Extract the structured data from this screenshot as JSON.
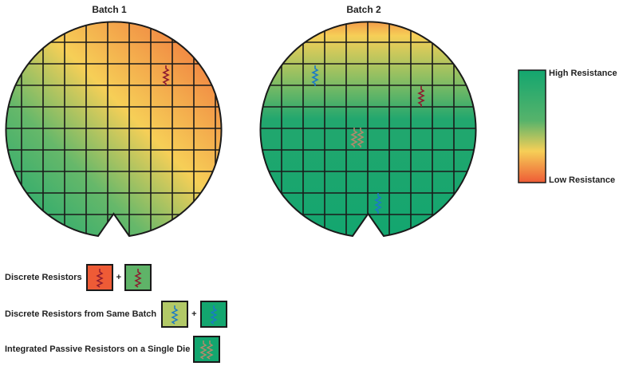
{
  "wafers": [
    {
      "title": "Batch 1"
    },
    {
      "title": "Batch 2"
    }
  ],
  "scale": {
    "high_label": "High Resistance",
    "low_label": "Low Resistance",
    "colors": [
      "#13a66f",
      "#57b36b",
      "#f6cf57",
      "#ee5b36"
    ]
  },
  "legend": {
    "rows": [
      {
        "label": "Discrete Resistors",
        "plus": "+",
        "swatches": [
          "red-wafer-swatch",
          "green-wafer-swatch"
        ]
      },
      {
        "label": "Discrete Resistors from Same Batch",
        "plus": "+",
        "swatches": [
          "yellow-green-wafer-swatch",
          "green-wafer-swatch"
        ]
      },
      {
        "label": "Integrated Passive Resistors on a Single Die",
        "swatches": [
          "green-wafer-swatch"
        ]
      }
    ]
  },
  "colors": {
    "resistor_red": "#8d1b2f",
    "resistor_blue": "#1b79c8",
    "resistor_tan": "#b08a6c",
    "grid": "#1a1a1a"
  }
}
